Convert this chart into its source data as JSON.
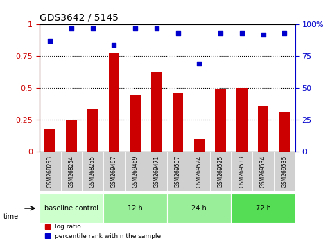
{
  "title": "GDS3642 / 5145",
  "categories": [
    "GSM268253",
    "GSM268254",
    "GSM268255",
    "GSM269467",
    "GSM269469",
    "GSM269471",
    "GSM269507",
    "GSM269524",
    "GSM269525",
    "GSM269533",
    "GSM269534",
    "GSM269535"
  ],
  "log_ratio": [
    0.18,
    0.25,
    0.34,
    0.78,
    0.45,
    0.63,
    0.46,
    0.1,
    0.49,
    0.5,
    0.36,
    0.31
  ],
  "percentile_rank": [
    0.87,
    0.97,
    0.97,
    0.84,
    0.97,
    0.97,
    0.93,
    0.69,
    0.93,
    0.93,
    0.92,
    0.93
  ],
  "bar_color": "#cc0000",
  "dot_color": "#0000cc",
  "ylim_left": [
    0,
    1.0
  ],
  "ylim_right": [
    0,
    100
  ],
  "yticks_left": [
    0,
    0.25,
    0.5,
    0.75,
    1.0
  ],
  "ytick_labels_left": [
    "0",
    "0.25",
    "0.5",
    "0.75",
    "1"
  ],
  "yticks_right": [
    0,
    25,
    50,
    75,
    100
  ],
  "ytick_labels_right": [
    "0",
    "25",
    "50",
    "75",
    "100%"
  ],
  "groups": [
    {
      "label": "baseline control",
      "start": 0,
      "end": 3,
      "color": "#ccffcc"
    },
    {
      "label": "12 h",
      "start": 3,
      "end": 6,
      "color": "#99ee99"
    },
    {
      "label": "24 h",
      "start": 6,
      "end": 9,
      "color": "#99ee99"
    },
    {
      "label": "72 h",
      "start": 9,
      "end": 12,
      "color": "#55dd55"
    }
  ],
  "legend_items": [
    {
      "label": "log ratio",
      "color": "#cc0000",
      "marker": "s"
    },
    {
      "label": "percentile rank within the sample",
      "color": "#0000cc",
      "marker": "s"
    }
  ],
  "time_label": "time",
  "xlabel_rotation": 90,
  "background_color": "#ffffff",
  "grid_linestyle": "dotted"
}
